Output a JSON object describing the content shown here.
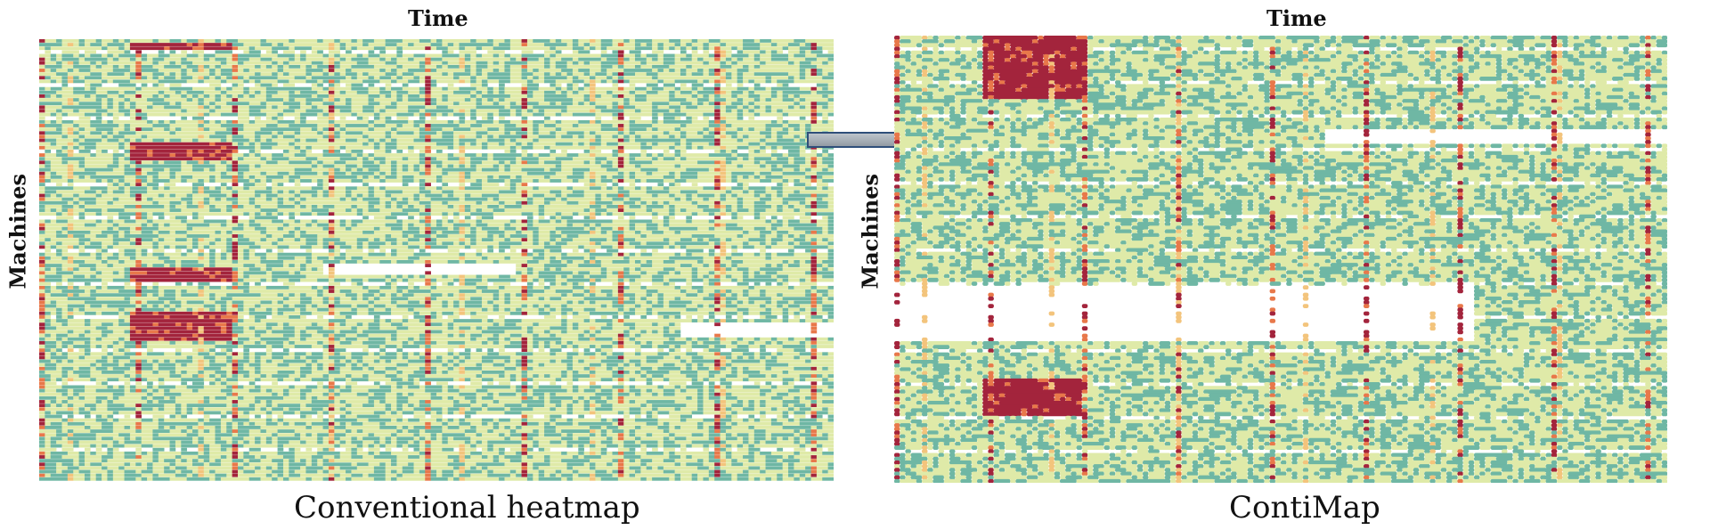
{
  "chart_data": [
    {
      "type": "heatmap",
      "title": "",
      "xlabel": "Time",
      "ylabel": "Machines",
      "caption": "Conventional heatmap",
      "legend": "none",
      "rows": 120,
      "cols": 140,
      "color_scale": [
        "#ffffff",
        "#6fb7a4",
        "#dfeaa8",
        "#f3c47c",
        "#e8784a",
        "#a3243c"
      ]
    },
    {
      "type": "heatmap",
      "title": "",
      "xlabel": "Time",
      "ylabel": "Machines",
      "caption": "ContiMap",
      "legend": "none",
      "rows": 120,
      "cols": 140,
      "color_scale": [
        "#ffffff",
        "#6fb7a4",
        "#dfeaa8",
        "#f3c47c",
        "#e8784a",
        "#a3243c"
      ]
    }
  ],
  "arrow": {
    "color": "#9aa2ab"
  }
}
